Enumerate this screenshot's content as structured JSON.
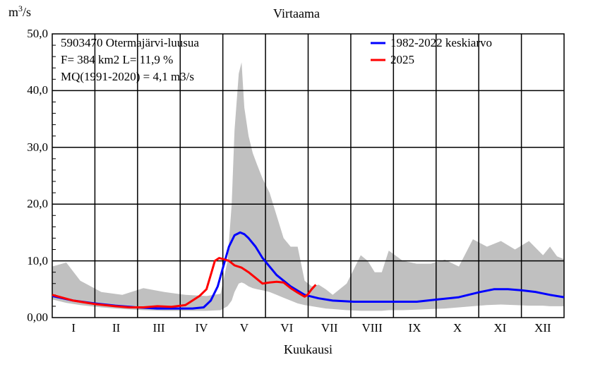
{
  "chart_data": {
    "type": "area",
    "title": "Virtaama",
    "ylabel_unit": "m3/s",
    "ylabel_base": "m",
    "ylabel_sup": "3",
    "ylabel_tail": "/s",
    "xlabel": "Kuukausi",
    "ylim": [
      0,
      50
    ],
    "xlim": [
      0,
      365
    ],
    "y_ticks": [
      "0,00",
      "10,0",
      "20,0",
      "30,0",
      "40,0",
      "50,0"
    ],
    "y_tick_values": [
      0,
      10,
      20,
      30,
      40,
      50
    ],
    "months": [
      "I",
      "II",
      "III",
      "IV",
      "V",
      "VI",
      "VII",
      "VIII",
      "IX",
      "X",
      "XI",
      "XII"
    ],
    "grid": true,
    "info_lines": [
      "5903470 Otermajärvi-luusua",
      "F=    384 km2 L=  11,9 %",
      "MQ(1991-2020) = 4,1 m3/s"
    ],
    "envelope": {
      "x": [
        0,
        10,
        20,
        35,
        50,
        65,
        80,
        95,
        110,
        120,
        125,
        128,
        130,
        133,
        135,
        137,
        140,
        143,
        146,
        150,
        155,
        160,
        165,
        170,
        175,
        180,
        185,
        190,
        195,
        200,
        210,
        220,
        225,
        230,
        235,
        240,
        250,
        260,
        270,
        280,
        290,
        300,
        310,
        320,
        330,
        340,
        350,
        355,
        360,
        365
      ],
      "upper": [
        9,
        9.7,
        6.5,
        4.5,
        4,
        5.2,
        4.5,
        4,
        3.8,
        4.2,
        10,
        20,
        33,
        43,
        45,
        37,
        32,
        29,
        27,
        24.5,
        22,
        18,
        14,
        12.5,
        12.5,
        6.5,
        5.5,
        5.8,
        5,
        4,
        6,
        11,
        10,
        8,
        8,
        11.8,
        10,
        9.5,
        9.5,
        10.2,
        9,
        13.8,
        12.5,
        13.5,
        12,
        13.5,
        11,
        12.5,
        10.8,
        10.3
      ],
      "lower": [
        3.2,
        2.6,
        2.2,
        1.8,
        1.5,
        1.3,
        1.2,
        1.2,
        1.2,
        1.3,
        2,
        3,
        4.5,
        6,
        6.2,
        6,
        5.5,
        5.2,
        5,
        4.8,
        4.5,
        4,
        3.5,
        3,
        2.5,
        2.2,
        2,
        1.8,
        1.6,
        1.5,
        1.3,
        1.2,
        1.2,
        1.2,
        1.2,
        1.3,
        1.3,
        1.4,
        1.5,
        1.6,
        1.8,
        2,
        2.2,
        2.3,
        2.2,
        2.1,
        2.1,
        2,
        2,
        2
      ]
    },
    "series": [
      {
        "name": "1982-2022 keskiarvo",
        "color": "#0000ff",
        "x": [
          0,
          15,
          30,
          45,
          60,
          75,
          90,
          100,
          108,
          113,
          118,
          122,
          126,
          130,
          134,
          137,
          140,
          145,
          150,
          160,
          170,
          180,
          190,
          200,
          215,
          240,
          260,
          275,
          290,
          305,
          315,
          325,
          335,
          345,
          355,
          365
        ],
        "y": [
          3.8,
          3,
          2.5,
          2.1,
          1.8,
          1.6,
          1.6,
          1.6,
          1.8,
          3,
          5.5,
          9,
          12.5,
          14.5,
          15,
          14.7,
          14,
          12.5,
          10.5,
          7.5,
          5.5,
          4,
          3.4,
          3,
          2.8,
          2.8,
          2.8,
          3.2,
          3.6,
          4.5,
          5,
          5,
          4.8,
          4.5,
          4,
          3.6
        ]
      },
      {
        "name": "2025",
        "color": "#ff0000",
        "x": [
          0,
          15,
          30,
          45,
          55,
          65,
          75,
          85,
          95,
          100,
          105,
          110,
          113,
          116,
          119,
          122,
          126,
          130,
          135,
          140,
          145,
          150,
          155,
          160,
          165,
          170,
          175,
          180,
          182,
          185,
          188
        ],
        "y": [
          4,
          3,
          2.4,
          2,
          1.8,
          1.8,
          2,
          1.9,
          2.2,
          3,
          3.8,
          5,
          7.5,
          10,
          10.5,
          10.3,
          10,
          9.2,
          8.8,
          8,
          7,
          6,
          6.2,
          6.3,
          6.2,
          5.2,
          4.4,
          3.7,
          4,
          5,
          5.8
        ]
      }
    ],
    "legend_position": "top-right"
  },
  "colors": {
    "envelope": "#c0c0c0",
    "grid": "#000000",
    "background": "#ffffff"
  }
}
